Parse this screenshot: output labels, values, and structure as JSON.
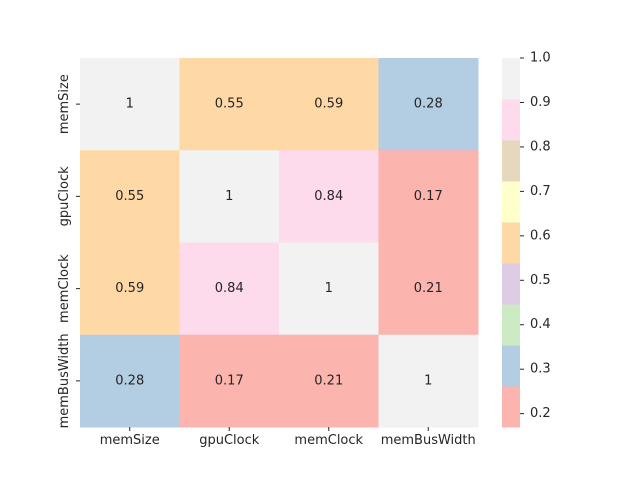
{
  "chart_data": {
    "type": "heatmap",
    "title": "",
    "xlabel": "",
    "ylabel": "",
    "x_categories": [
      "memSize",
      "gpuClock",
      "memClock",
      "memBusWidth"
    ],
    "y_categories": [
      "memSize",
      "gpuClock",
      "memClock",
      "memBusWidth"
    ],
    "values": [
      [
        1,
        0.55,
        0.59,
        0.28
      ],
      [
        0.55,
        1,
        0.84,
        0.17
      ],
      [
        0.59,
        0.84,
        1,
        0.21
      ],
      [
        0.28,
        0.17,
        0.21,
        1
      ]
    ],
    "value_labels": [
      [
        "1",
        "0.55",
        "0.59",
        "0.28"
      ],
      [
        "0.55",
        "1",
        "0.84",
        "0.17"
      ],
      [
        "0.59",
        "0.84",
        "1",
        "0.21"
      ],
      [
        "0.28",
        "0.17",
        "0.21",
        "1"
      ]
    ],
    "colorbar": {
      "range": [
        0.17,
        1.0
      ],
      "ticks": [
        0.2,
        0.3,
        0.4,
        0.5,
        0.6,
        0.7,
        0.8,
        0.9,
        1.0
      ],
      "tick_labels": [
        "0.2",
        "0.3",
        "0.4",
        "0.5",
        "0.6",
        "0.7",
        "0.8",
        "0.9",
        "1.0"
      ],
      "colormap": "Pastel1",
      "colors": [
        "#fbb4ae",
        "#b3cde3",
        "#ccebc5",
        "#decbe4",
        "#fed9a6",
        "#ffffcc",
        "#e5d8bd",
        "#fddaec",
        "#f2f2f2"
      ],
      "placement": "right"
    }
  }
}
